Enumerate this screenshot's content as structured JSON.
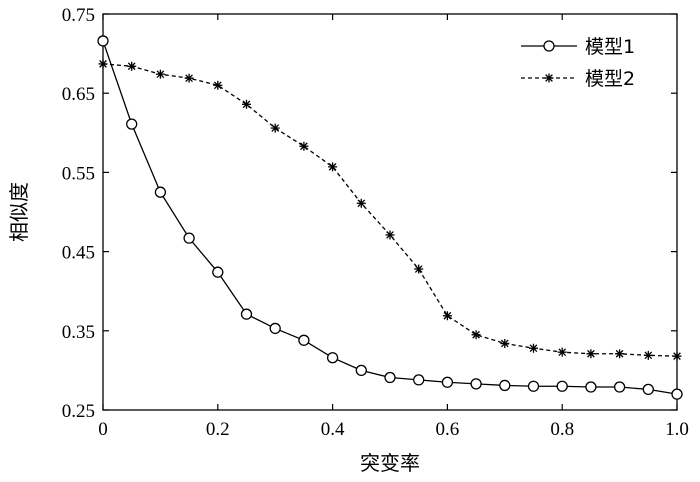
{
  "chart_data": {
    "type": "line",
    "xlabel": "突变率",
    "ylabel": "相似度",
    "xlim": [
      0,
      1.0
    ],
    "ylim": [
      0.25,
      0.75
    ],
    "x_ticks": [
      "0",
      "0.2",
      "0.4",
      "0.6",
      "0.8",
      "1.0"
    ],
    "y_ticks": [
      "0.25",
      "0.35",
      "0.45",
      "0.55",
      "0.65",
      "0.75"
    ],
    "grid": false,
    "legend_position": "top-right",
    "x": [
      0,
      0.05,
      0.1,
      0.15,
      0.2,
      0.25,
      0.3,
      0.35,
      0.4,
      0.45,
      0.5,
      0.55,
      0.6,
      0.65,
      0.7,
      0.75,
      0.8,
      0.85,
      0.9,
      0.95,
      1.0
    ],
    "series": [
      {
        "name": "模型1",
        "marker": "circle",
        "line_style": "solid",
        "color": "#000000",
        "values": [
          0.716,
          0.611,
          0.525,
          0.467,
          0.424,
          0.371,
          0.353,
          0.338,
          0.316,
          0.3,
          0.291,
          0.288,
          0.285,
          0.283,
          0.281,
          0.28,
          0.28,
          0.279,
          0.279,
          0.276,
          0.27
        ]
      },
      {
        "name": "模型2",
        "marker": "asterisk",
        "line_style": "dashed",
        "color": "#000000",
        "values": [
          0.687,
          0.684,
          0.674,
          0.669,
          0.66,
          0.636,
          0.606,
          0.583,
          0.557,
          0.511,
          0.471,
          0.428,
          0.369,
          0.345,
          0.334,
          0.328,
          0.323,
          0.321,
          0.321,
          0.319,
          0.318
        ]
      }
    ]
  }
}
